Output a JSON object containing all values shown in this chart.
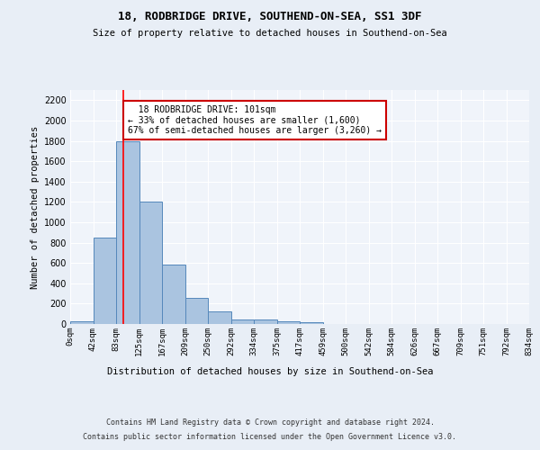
{
  "title1": "18, RODBRIDGE DRIVE, SOUTHEND-ON-SEA, SS1 3DF",
  "title2": "Size of property relative to detached houses in Southend-on-Sea",
  "xlabel": "Distribution of detached houses by size in Southend-on-Sea",
  "ylabel": "Number of detached properties",
  "bin_labels": [
    "0sqm",
    "42sqm",
    "83sqm",
    "125sqm",
    "167sqm",
    "209sqm",
    "250sqm",
    "292sqm",
    "334sqm",
    "375sqm",
    "417sqm",
    "459sqm",
    "500sqm",
    "542sqm",
    "584sqm",
    "626sqm",
    "667sqm",
    "709sqm",
    "751sqm",
    "792sqm",
    "834sqm"
  ],
  "bar_values": [
    25,
    850,
    1800,
    1200,
    580,
    260,
    120,
    45,
    45,
    25,
    15,
    0,
    0,
    0,
    0,
    0,
    0,
    0,
    0,
    0
  ],
  "bar_color": "#aac4e0",
  "bar_edge_color": "#5588bb",
  "red_line_x": 2.3,
  "annotation_text": "  18 RODBRIDGE DRIVE: 101sqm  \n← 33% of detached houses are smaller (1,600)\n67% of semi-detached houses are larger (3,260) →",
  "annotation_box_color": "#ffffff",
  "annotation_box_edge": "#cc0000",
  "ylim": [
    0,
    2300
  ],
  "yticks": [
    0,
    200,
    400,
    600,
    800,
    1000,
    1200,
    1400,
    1600,
    1800,
    2000,
    2200
  ],
  "footer1": "Contains HM Land Registry data © Crown copyright and database right 2024.",
  "footer2": "Contains public sector information licensed under the Open Government Licence v3.0.",
  "bg_color": "#e8eef6",
  "plot_bg_color": "#f0f4fa"
}
